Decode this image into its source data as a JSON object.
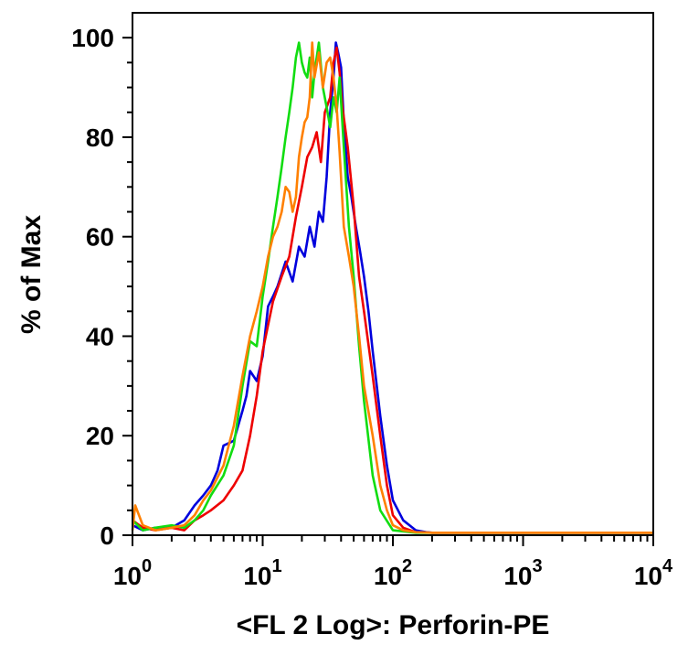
{
  "chart_data": {
    "type": "line",
    "xlabel": "<FL 2 Log>: Perforin-PE",
    "ylabel": "% of Max",
    "xscale": "log",
    "xlim": [
      1,
      10000
    ],
    "ylim": [
      0,
      105
    ],
    "grid": false,
    "y_ticks": [
      {
        "value": 0,
        "label": "0"
      },
      {
        "value": 20,
        "label": "20"
      },
      {
        "value": 40,
        "label": "40"
      },
      {
        "value": 60,
        "label": "60"
      },
      {
        "value": 80,
        "label": "80"
      },
      {
        "value": 100,
        "label": "100"
      }
    ],
    "x_ticks": [
      {
        "value": 1,
        "base": "10",
        "exp": "0"
      },
      {
        "value": 10,
        "base": "10",
        "exp": "1"
      },
      {
        "value": 100,
        "base": "10",
        "exp": "2"
      },
      {
        "value": 1000,
        "base": "10",
        "exp": "3"
      },
      {
        "value": 10000,
        "base": "10",
        "exp": "4"
      }
    ],
    "series": [
      {
        "color": "#0000dd",
        "x": [
          1.0,
          1.2,
          1.5,
          2.0,
          2.5,
          3.0,
          3.5,
          4.0,
          4.5,
          5.0,
          6.0,
          7.0,
          7.5,
          8.0,
          9.0,
          10.0,
          11.0,
          12.0,
          13.0,
          15.0,
          17.0,
          19.0,
          21.0,
          23.0,
          25.0,
          27.0,
          29.0,
          31.0,
          33.0,
          35.0,
          36.5,
          38.0,
          40.0,
          42.0,
          45.0,
          48.0,
          52.0,
          56.0,
          60.0,
          65.0,
          70.0,
          80.0,
          90.0,
          100.0,
          120.0,
          150.0,
          180.0,
          200.0,
          500.0,
          1000.0,
          5000.0,
          10000.0
        ],
        "y": [
          2,
          1,
          1.5,
          1.5,
          3,
          6,
          8,
          10,
          13,
          18,
          19,
          25,
          28,
          33,
          31,
          36,
          46,
          48,
          50,
          55,
          51,
          58,
          56,
          62,
          58,
          65,
          63,
          72,
          85,
          92,
          99,
          97,
          94,
          83,
          72,
          68,
          62,
          57,
          52,
          45,
          37,
          24,
          14,
          7,
          3,
          1,
          0.6,
          0.5,
          0.5,
          0.5,
          0.5,
          0.5
        ]
      },
      {
        "color": "#ee0000",
        "x": [
          1.0,
          1.2,
          1.5,
          2.0,
          2.5,
          3.0,
          3.5,
          4.0,
          5.0,
          6.0,
          7.0,
          8.0,
          9.0,
          10.0,
          12.0,
          14.0,
          16.0,
          18.0,
          20.0,
          22.0,
          24.0,
          26.0,
          28.0,
          30.0,
          33.0,
          35.0,
          37.0,
          39.0,
          41.0,
          45.0,
          50.0,
          55.0,
          60.0,
          70.0,
          80.0,
          90.0,
          100.0,
          120.0,
          150.0,
          200.0,
          500.0,
          1000.0,
          5000.0,
          10000.0
        ],
        "y": [
          3,
          1.5,
          1,
          1.5,
          1,
          3,
          4,
          5,
          7,
          10,
          13,
          20,
          28,
          37,
          47,
          52,
          56,
          64,
          70,
          76,
          78,
          81,
          75,
          85,
          88,
          95,
          98,
          93,
          86,
          78,
          66,
          52,
          45,
          32,
          20,
          10,
          4,
          1.5,
          0.6,
          0.5,
          0.5,
          0.5,
          0.5,
          0.5
        ]
      },
      {
        "color": "#11dd11",
        "x": [
          1.0,
          1.2,
          1.5,
          2.0,
          2.5,
          3.0,
          3.5,
          4.0,
          5.0,
          6.0,
          7.0,
          8.0,
          9.0,
          10.0,
          11.0,
          12.0,
          13.0,
          14.0,
          15.0,
          16.0,
          17.0,
          18.0,
          19.0,
          20.0,
          21.0,
          22.0,
          23.0,
          24.0,
          25.0,
          27.0,
          29.0,
          31.0,
          33.0,
          35.0,
          37.0,
          39.0,
          42.0,
          46.0,
          50.0,
          55.0,
          60.0,
          70.0,
          80.0,
          100.0,
          150.0,
          200.0,
          500.0,
          1000.0,
          5000.0,
          10000.0
        ],
        "y": [
          3,
          1,
          1.5,
          2,
          1.5,
          3,
          5,
          8,
          12,
          18,
          30,
          39,
          38,
          48,
          55,
          62,
          68,
          74,
          80,
          85,
          90,
          96,
          99,
          95,
          93,
          92,
          96,
          88,
          93,
          99,
          90,
          86,
          82,
          88,
          85,
          92,
          78,
          62,
          52,
          38,
          27,
          12,
          5,
          1,
          0.5,
          0.5,
          0.5,
          0.5,
          0.5,
          0.5
        ]
      },
      {
        "color": "#ff8000",
        "x": [
          1.0,
          1.05,
          1.2,
          1.5,
          2.0,
          2.5,
          3.0,
          3.5,
          4.0,
          5.0,
          6.0,
          7.0,
          8.0,
          9.0,
          10.0,
          11.0,
          12.0,
          13.0,
          14.0,
          15.0,
          16.0,
          17.0,
          18.0,
          19.0,
          20.0,
          21.0,
          22.0,
          23.0,
          24.0,
          25.0,
          27.0,
          29.0,
          31.0,
          33.0,
          35.0,
          37.0,
          39.0,
          42.0,
          46.0,
          50.0,
          55.0,
          60.0,
          70.0,
          80.0,
          90.0,
          100.0,
          120.0,
          150.0,
          200.0,
          500.0,
          1000.0,
          5000.0,
          10000.0
        ],
        "y": [
          1,
          6,
          2,
          1,
          1.5,
          2,
          4,
          7,
          9,
          14,
          22,
          32,
          40,
          45,
          50,
          56,
          60,
          62,
          65,
          70,
          69,
          65,
          68,
          76,
          80,
          83,
          84,
          88,
          99,
          92,
          97,
          90,
          95,
          96,
          92,
          86,
          77,
          62,
          56,
          50,
          40,
          30,
          20,
          10,
          5,
          2,
          1,
          0.6,
          0.5,
          0.5,
          0.5,
          0.5,
          0.5
        ]
      }
    ]
  }
}
